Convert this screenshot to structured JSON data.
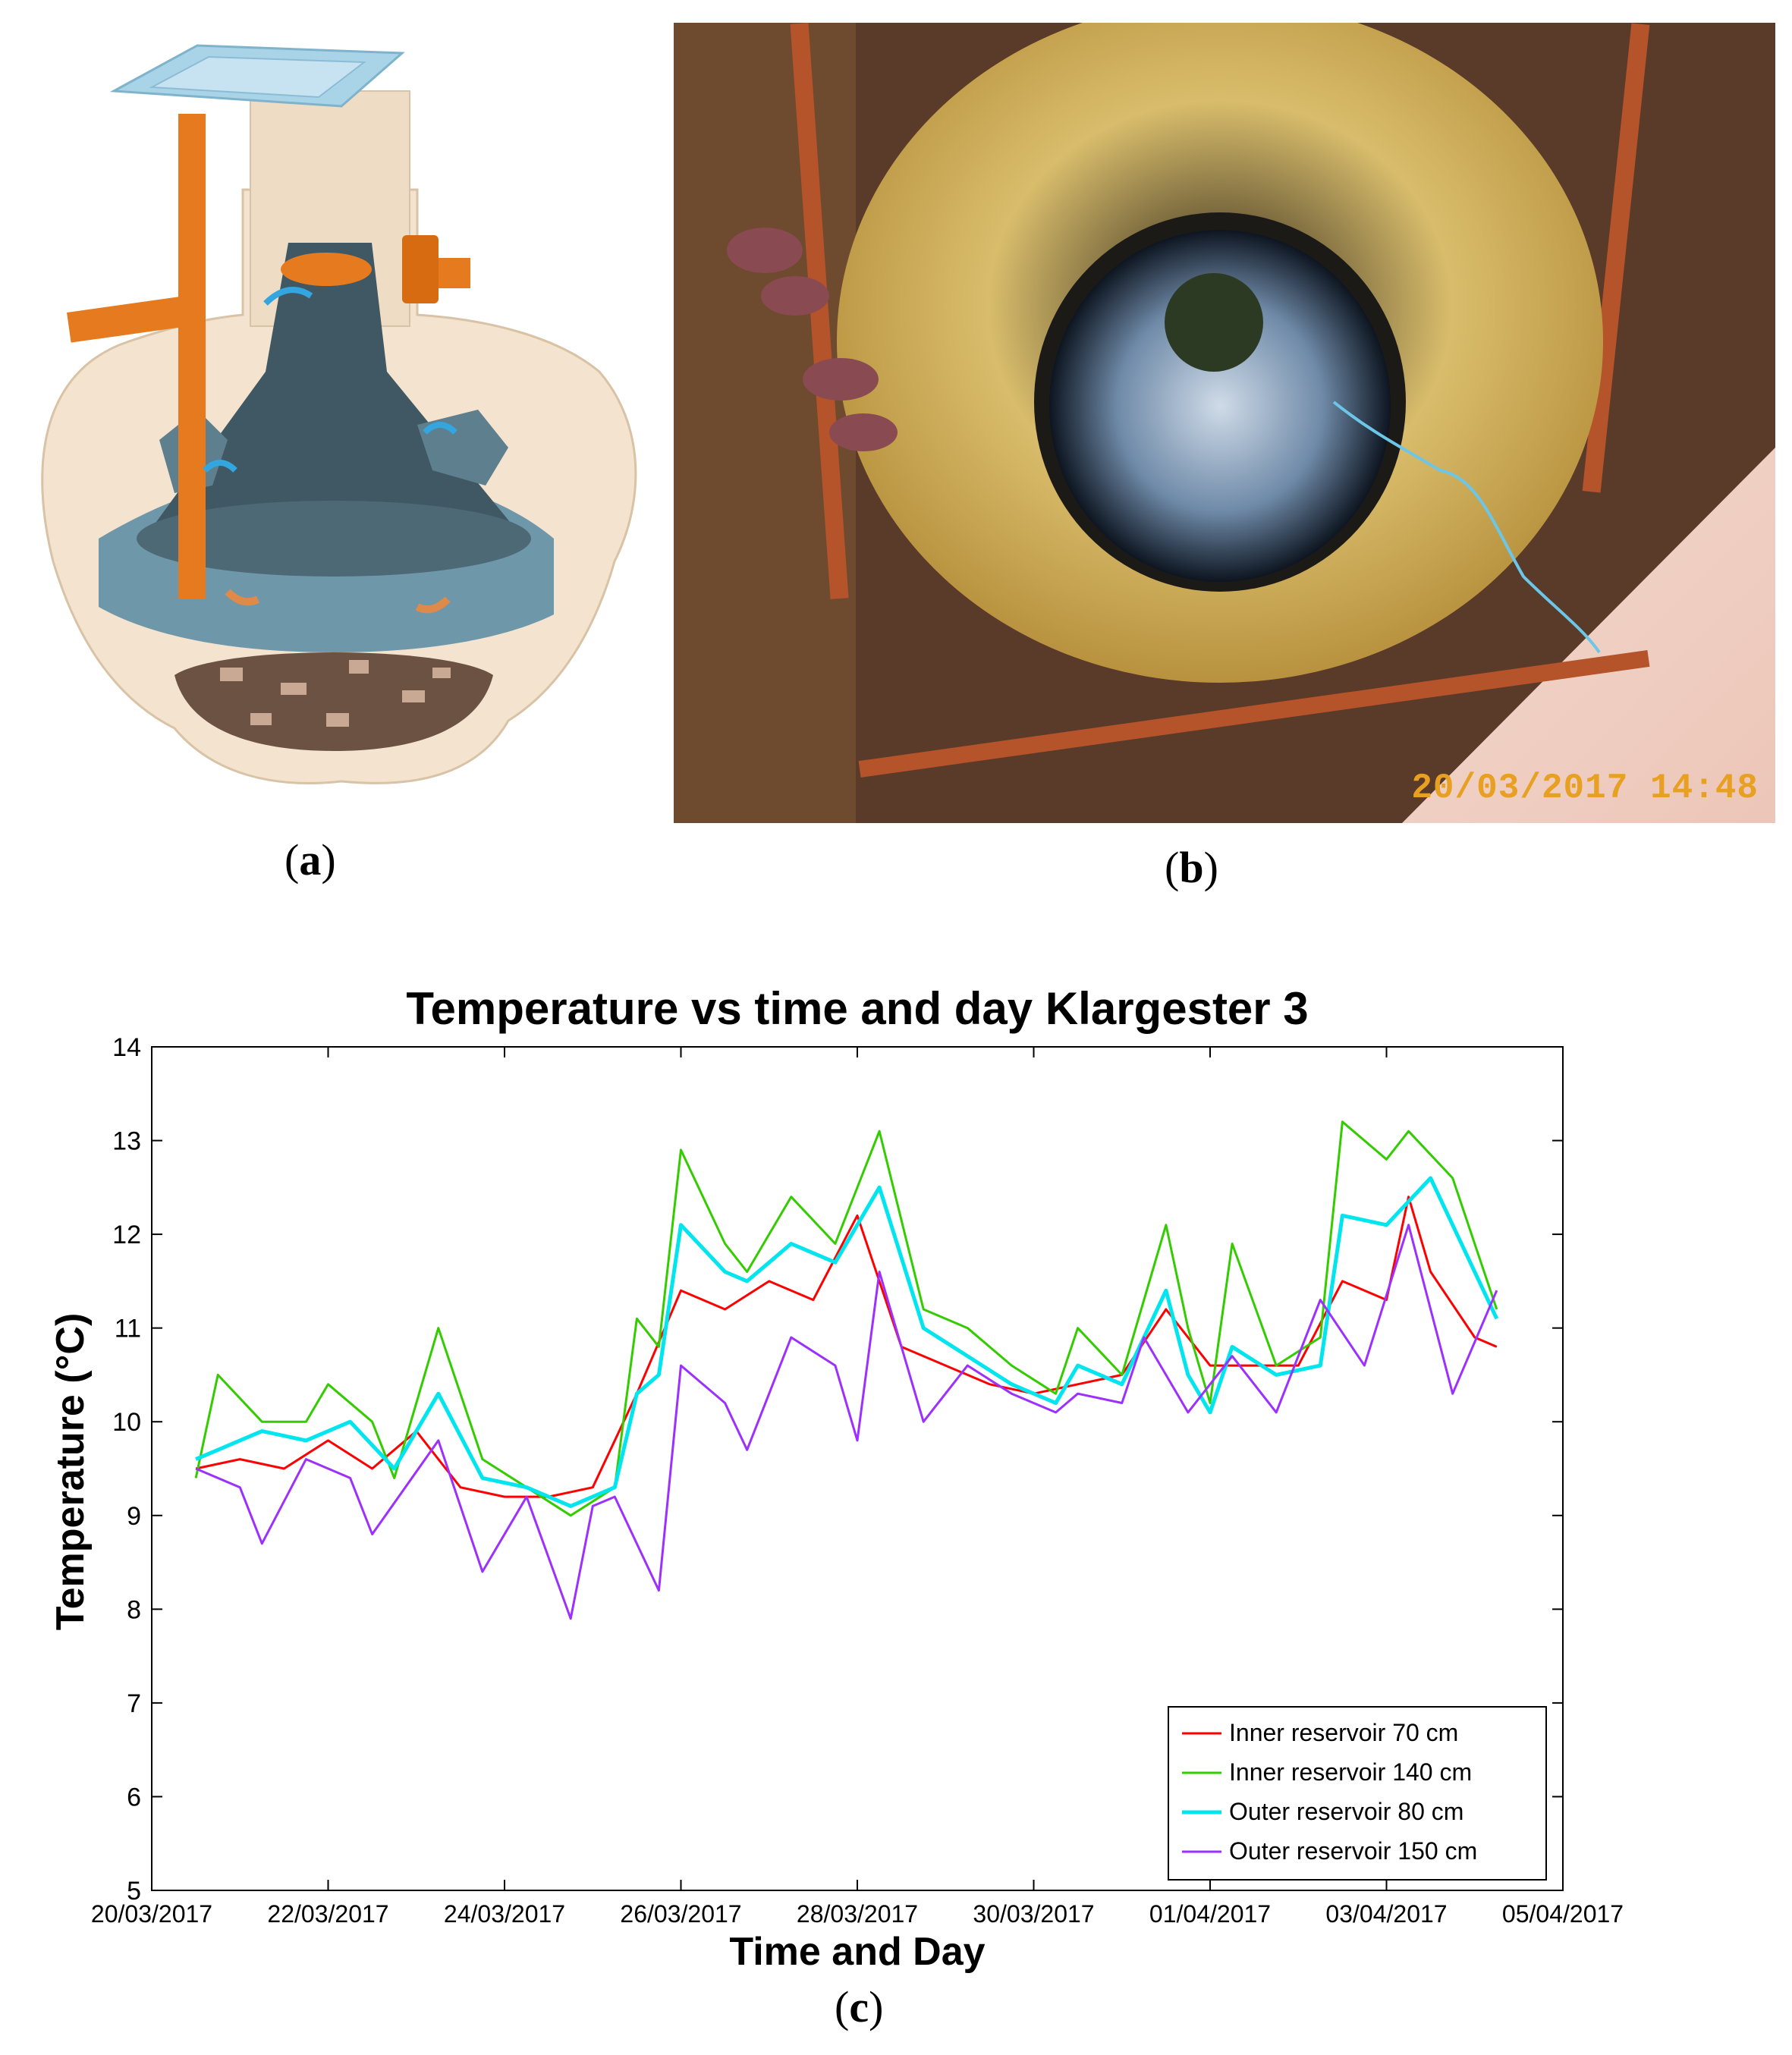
{
  "panels": {
    "a": {
      "label_open": "(",
      "label_letter": "a",
      "label_close": ")"
    },
    "b": {
      "label_open": "(",
      "label_letter": "b",
      "label_close": ")",
      "timestamp": "20/03/2017 14:48"
    },
    "c": {
      "label_open": "(",
      "label_letter": "c",
      "label_close": ")"
    }
  },
  "colors": {
    "tank_shell": "#f3e3cf",
    "tank_inner": "#5d7f8e",
    "pipe": "#e67a1e",
    "lid": "#a9d4e8",
    "sludge": "#6b5243",
    "ground": "#5a3a28",
    "well_wall": "#d9bd6c"
  },
  "chart_data": {
    "type": "line",
    "title": "Temperature vs time and day Klargester 3",
    "xlabel": "Time and Day",
    "ylabel": "Temperature (°C)",
    "ylim": [
      5,
      14
    ],
    "yticks": [
      5,
      6,
      7,
      8,
      9,
      10,
      11,
      12,
      13,
      14
    ],
    "xlim": [
      "20/03/2017",
      "05/04/2017"
    ],
    "xticks": [
      "20/03/2017",
      "22/03/2017",
      "24/03/2017",
      "26/03/2017",
      "28/03/2017",
      "30/03/2017",
      "01/04/2017",
      "03/04/2017",
      "05/04/2017"
    ],
    "grid": false,
    "legend_position": "bottom-right",
    "series": [
      {
        "name": "Inner reservoir 70 cm",
        "color": "#ff0000",
        "points": [
          [
            "20/03/2017 12:00",
            9.5
          ],
          [
            "21/03/2017 00:00",
            9.6
          ],
          [
            "21/03/2017 12:00",
            9.5
          ],
          [
            "22/03/2017 00:00",
            9.8
          ],
          [
            "22/03/2017 12:00",
            9.5
          ],
          [
            "23/03/2017 00:00",
            9.9
          ],
          [
            "23/03/2017 12:00",
            9.3
          ],
          [
            "24/03/2017 00:00",
            9.2
          ],
          [
            "24/03/2017 12:00",
            9.2
          ],
          [
            "25/03/2017 00:00",
            9.3
          ],
          [
            "25/03/2017 12:00",
            10.3
          ],
          [
            "26/03/2017 00:00",
            11.4
          ],
          [
            "26/03/2017 12:00",
            11.2
          ],
          [
            "27/03/2017 00:00",
            11.5
          ],
          [
            "27/03/2017 12:00",
            11.3
          ],
          [
            "28/03/2017 00:00",
            12.2
          ],
          [
            "28/03/2017 12:00",
            10.8
          ],
          [
            "29/03/2017 00:00",
            10.6
          ],
          [
            "29/03/2017 12:00",
            10.4
          ],
          [
            "30/03/2017 00:00",
            10.3
          ],
          [
            "30/03/2017 12:00",
            10.4
          ],
          [
            "31/03/2017 00:00",
            10.5
          ],
          [
            "31/03/2017 12:00",
            11.2
          ],
          [
            "01/04/2017 00:00",
            10.6
          ],
          [
            "01/04/2017 12:00",
            10.6
          ],
          [
            "02/04/2017 00:00",
            10.6
          ],
          [
            "02/04/2017 12:00",
            11.5
          ],
          [
            "03/04/2017 00:00",
            11.3
          ],
          [
            "03/04/2017 06:00",
            12.4
          ],
          [
            "03/04/2017 12:00",
            11.6
          ],
          [
            "04/04/2017 00:00",
            10.9
          ],
          [
            "04/04/2017 06:00",
            10.8
          ]
        ]
      },
      {
        "name": "Inner reservoir 140 cm",
        "color": "#33cc00",
        "points": [
          [
            "20/03/2017 12:00",
            9.4
          ],
          [
            "20/03/2017 18:00",
            10.5
          ],
          [
            "21/03/2017 06:00",
            10.0
          ],
          [
            "21/03/2017 18:00",
            10.0
          ],
          [
            "22/03/2017 00:00",
            10.4
          ],
          [
            "22/03/2017 12:00",
            10.0
          ],
          [
            "22/03/2017 18:00",
            9.4
          ],
          [
            "23/03/2017 06:00",
            11.0
          ],
          [
            "23/03/2017 18:00",
            9.6
          ],
          [
            "24/03/2017 06:00",
            9.3
          ],
          [
            "24/03/2017 18:00",
            9.0
          ],
          [
            "25/03/2017 06:00",
            9.3
          ],
          [
            "25/03/2017 12:00",
            11.1
          ],
          [
            "25/03/2017 18:00",
            10.8
          ],
          [
            "26/03/2017 00:00",
            12.9
          ],
          [
            "26/03/2017 12:00",
            11.9
          ],
          [
            "26/03/2017 18:00",
            11.6
          ],
          [
            "27/03/2017 06:00",
            12.4
          ],
          [
            "27/03/2017 18:00",
            11.9
          ],
          [
            "28/03/2017 06:00",
            13.1
          ],
          [
            "28/03/2017 18:00",
            11.2
          ],
          [
            "29/03/2017 06:00",
            11.0
          ],
          [
            "29/03/2017 18:00",
            10.6
          ],
          [
            "30/03/2017 06:00",
            10.3
          ],
          [
            "30/03/2017 12:00",
            11.0
          ],
          [
            "31/03/2017 00:00",
            10.5
          ],
          [
            "31/03/2017 12:00",
            12.1
          ],
          [
            "31/03/2017 18:00",
            11.0
          ],
          [
            "01/04/2017 00:00",
            10.2
          ],
          [
            "01/04/2017 06:00",
            11.9
          ],
          [
            "01/04/2017 18:00",
            10.6
          ],
          [
            "02/04/2017 06:00",
            10.9
          ],
          [
            "02/04/2017 12:00",
            13.2
          ],
          [
            "03/04/2017 00:00",
            12.8
          ],
          [
            "03/04/2017 06:00",
            13.1
          ],
          [
            "03/04/2017 18:00",
            12.6
          ],
          [
            "04/04/2017 06:00",
            11.2
          ]
        ]
      },
      {
        "name": "Outer reservoir 80 cm",
        "color": "#00e5ee",
        "points": [
          [
            "20/03/2017 12:00",
            9.6
          ],
          [
            "20/03/2017 18:00",
            9.7
          ],
          [
            "21/03/2017 06:00",
            9.9
          ],
          [
            "21/03/2017 18:00",
            9.8
          ],
          [
            "22/03/2017 06:00",
            10.0
          ],
          [
            "22/03/2017 18:00",
            9.5
          ],
          [
            "23/03/2017 06:00",
            10.3
          ],
          [
            "23/03/2017 18:00",
            9.4
          ],
          [
            "24/03/2017 06:00",
            9.3
          ],
          [
            "24/03/2017 18:00",
            9.1
          ],
          [
            "25/03/2017 06:00",
            9.3
          ],
          [
            "25/03/2017 12:00",
            10.3
          ],
          [
            "25/03/2017 18:00",
            10.5
          ],
          [
            "26/03/2017 00:00",
            12.1
          ],
          [
            "26/03/2017 12:00",
            11.6
          ],
          [
            "26/03/2017 18:00",
            11.5
          ],
          [
            "27/03/2017 06:00",
            11.9
          ],
          [
            "27/03/2017 18:00",
            11.7
          ],
          [
            "28/03/2017 06:00",
            12.5
          ],
          [
            "28/03/2017 18:00",
            11.0
          ],
          [
            "29/03/2017 06:00",
            10.7
          ],
          [
            "29/03/2017 18:00",
            10.4
          ],
          [
            "30/03/2017 06:00",
            10.2
          ],
          [
            "30/03/2017 12:00",
            10.6
          ],
          [
            "31/03/2017 00:00",
            10.4
          ],
          [
            "31/03/2017 12:00",
            11.4
          ],
          [
            "31/03/2017 18:00",
            10.5
          ],
          [
            "01/04/2017 00:00",
            10.1
          ],
          [
            "01/04/2017 06:00",
            10.8
          ],
          [
            "01/04/2017 18:00",
            10.5
          ],
          [
            "02/04/2017 06:00",
            10.6
          ],
          [
            "02/04/2017 12:00",
            12.2
          ],
          [
            "03/04/2017 00:00",
            12.1
          ],
          [
            "03/04/2017 12:00",
            12.6
          ],
          [
            "04/04/2017 06:00",
            11.1
          ]
        ]
      },
      {
        "name": "Outer reservoir 150 cm",
        "color": "#9b30ff",
        "points": [
          [
            "20/03/2017 12:00",
            9.5
          ],
          [
            "21/03/2017 00:00",
            9.3
          ],
          [
            "21/03/2017 06:00",
            8.7
          ],
          [
            "21/03/2017 18:00",
            9.6
          ],
          [
            "22/03/2017 06:00",
            9.4
          ],
          [
            "22/03/2017 12:00",
            8.8
          ],
          [
            "23/03/2017 06:00",
            9.8
          ],
          [
            "23/03/2017 18:00",
            8.4
          ],
          [
            "24/03/2017 06:00",
            9.2
          ],
          [
            "24/03/2017 18:00",
            7.9
          ],
          [
            "25/03/2017 00:00",
            9.1
          ],
          [
            "25/03/2017 06:00",
            9.2
          ],
          [
            "25/03/2017 18:00",
            8.2
          ],
          [
            "26/03/2017 00:00",
            10.6
          ],
          [
            "26/03/2017 12:00",
            10.2
          ],
          [
            "26/03/2017 18:00",
            9.7
          ],
          [
            "27/03/2017 06:00",
            10.9
          ],
          [
            "27/03/2017 18:00",
            10.6
          ],
          [
            "28/03/2017 00:00",
            9.8
          ],
          [
            "28/03/2017 06:00",
            11.6
          ],
          [
            "28/03/2017 18:00",
            10.0
          ],
          [
            "29/03/2017 06:00",
            10.6
          ],
          [
            "29/03/2017 18:00",
            10.3
          ],
          [
            "30/03/2017 06:00",
            10.1
          ],
          [
            "30/03/2017 12:00",
            10.3
          ],
          [
            "31/03/2017 00:00",
            10.2
          ],
          [
            "31/03/2017 06:00",
            10.9
          ],
          [
            "31/03/2017 18:00",
            10.1
          ],
          [
            "01/04/2017 06:00",
            10.7
          ],
          [
            "01/04/2017 18:00",
            10.1
          ],
          [
            "02/04/2017 06:00",
            11.3
          ],
          [
            "02/04/2017 18:00",
            10.6
          ],
          [
            "03/04/2017 06:00",
            12.1
          ],
          [
            "03/04/2017 18:00",
            10.3
          ],
          [
            "04/04/2017 06:00",
            11.4
          ]
        ]
      }
    ]
  }
}
